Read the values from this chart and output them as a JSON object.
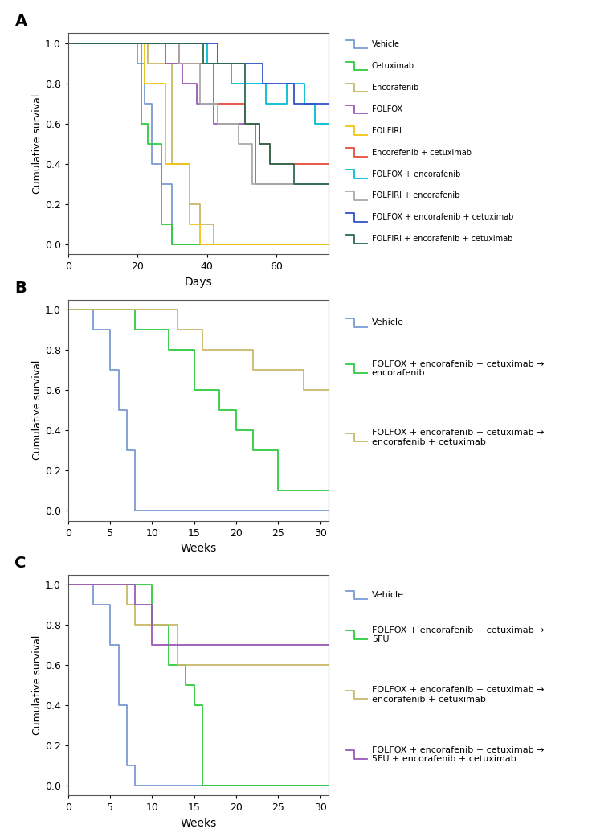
{
  "panel_A": {
    "xlabel": "Days",
    "ylabel": "Cumulative survival",
    "xlim": [
      0,
      75
    ],
    "ylim": [
      -0.05,
      1.05
    ],
    "xticks": [
      0,
      20,
      40,
      60
    ],
    "yticks": [
      0.0,
      0.2,
      0.4,
      0.6,
      0.8,
      1.0
    ],
    "curves": [
      {
        "label": "Vehicle",
        "color": "#7B9BD4",
        "x": [
          0,
          20,
          22,
          24,
          27,
          30,
          75
        ],
        "y": [
          1.0,
          0.9,
          0.7,
          0.4,
          0.3,
          0.0,
          0.0
        ]
      },
      {
        "label": "Cetuximab",
        "color": "#2ECC40",
        "x": [
          0,
          21,
          23,
          27,
          30,
          75
        ],
        "y": [
          1.0,
          0.6,
          0.5,
          0.1,
          0.0,
          0.0
        ]
      },
      {
        "label": "Encorafenib",
        "color": "#C8B96A",
        "x": [
          0,
          23,
          30,
          35,
          38,
          42,
          75
        ],
        "y": [
          1.0,
          0.9,
          0.4,
          0.2,
          0.1,
          0.0,
          0.0
        ]
      },
      {
        "label": "FOLFOX",
        "color": "#9B59B6",
        "x": [
          0,
          28,
          33,
          37,
          42,
          54,
          75
        ],
        "y": [
          1.0,
          0.9,
          0.8,
          0.7,
          0.6,
          0.3,
          0.3
        ]
      },
      {
        "label": "FOLFIRI",
        "color": "#F1C40F",
        "x": [
          0,
          22,
          28,
          35,
          38,
          75
        ],
        "y": [
          1.0,
          0.8,
          0.4,
          0.1,
          0.0,
          0.0
        ]
      },
      {
        "label": "Encorefenib + cetuximab",
        "color": "#E74C3C",
        "x": [
          0,
          32,
          42,
          51,
          55,
          58,
          75
        ],
        "y": [
          1.0,
          0.9,
          0.7,
          0.6,
          0.5,
          0.4,
          0.4
        ]
      },
      {
        "label": "FOLFOX + encorafenib",
        "color": "#00BCD4",
        "x": [
          0,
          40,
          47,
          57,
          63,
          68,
          71,
          75
        ],
        "y": [
          1.0,
          0.9,
          0.8,
          0.7,
          0.8,
          0.7,
          0.6,
          0.6
        ]
      },
      {
        "label": "FOLFIRI + encorafenib",
        "color": "#AAAAAA",
        "x": [
          0,
          32,
          38,
          43,
          49,
          53,
          57,
          75
        ],
        "y": [
          1.0,
          0.9,
          0.7,
          0.6,
          0.5,
          0.3,
          0.3,
          0.3
        ]
      },
      {
        "label": "FOLFOX + encorafenib + cetuximab",
        "color": "#3050C8",
        "x": [
          0,
          43,
          56,
          65,
          70,
          75
        ],
        "y": [
          1.0,
          0.9,
          0.8,
          0.7,
          0.7,
          0.7
        ]
      },
      {
        "label": "FOLFIRI + encorafenib + cetuximab",
        "color": "#2D6A4F",
        "x": [
          0,
          39,
          51,
          55,
          58,
          65,
          75
        ],
        "y": [
          1.0,
          0.9,
          0.6,
          0.5,
          0.4,
          0.3,
          0.3
        ]
      }
    ]
  },
  "panel_B": {
    "xlabel": "Weeks",
    "ylabel": "Cumulative survival",
    "xlim": [
      0,
      31
    ],
    "ylim": [
      -0.05,
      1.05
    ],
    "xticks": [
      0,
      5,
      10,
      15,
      20,
      25,
      30
    ],
    "yticks": [
      0.0,
      0.2,
      0.4,
      0.6,
      0.8,
      1.0
    ],
    "curves": [
      {
        "label": "Vehicle",
        "color": "#7B9BD4",
        "x": [
          0,
          3,
          5,
          6,
          7,
          8,
          31
        ],
        "y": [
          1.0,
          0.9,
          0.7,
          0.5,
          0.3,
          0.0,
          0.0
        ]
      },
      {
        "label": "FOLFOX + encorafenib + cetuximab →\nencorafenib",
        "color": "#2ECC40",
        "x": [
          0,
          8,
          12,
          15,
          18,
          20,
          22,
          25,
          31
        ],
        "y": [
          1.0,
          0.9,
          0.8,
          0.6,
          0.5,
          0.4,
          0.3,
          0.1,
          0.1
        ]
      },
      {
        "label": "FOLFOX + encorafenib + cetuximab →\nencorafenib + cetuximab",
        "color": "#C8B96A",
        "x": [
          0,
          9,
          13,
          16,
          22,
          25,
          28,
          31
        ],
        "y": [
          1.0,
          1.0,
          0.9,
          0.8,
          0.7,
          0.7,
          0.6,
          0.6
        ]
      }
    ]
  },
  "panel_C": {
    "xlabel": "Weeks",
    "ylabel": "Cumulative survival",
    "xlim": [
      0,
      31
    ],
    "ylim": [
      -0.05,
      1.05
    ],
    "xticks": [
      0,
      5,
      10,
      15,
      20,
      25,
      30
    ],
    "yticks": [
      0.0,
      0.2,
      0.4,
      0.6,
      0.8,
      1.0
    ],
    "curves": [
      {
        "label": "Vehicle",
        "color": "#7B9BD4",
        "x": [
          0,
          3,
          5,
          6,
          7,
          8,
          31
        ],
        "y": [
          1.0,
          0.9,
          0.7,
          0.4,
          0.1,
          0.0,
          0.0
        ]
      },
      {
        "label": "FOLFOX + encorafenib + cetuximab →\n5FU",
        "color": "#2ECC40",
        "x": [
          0,
          8,
          10,
          12,
          14,
          15,
          16,
          31
        ],
        "y": [
          1.0,
          1.0,
          0.8,
          0.6,
          0.5,
          0.4,
          0.0,
          0.0
        ]
      },
      {
        "label": "FOLFOX + encorafenib + cetuximab →\nencorafenib + cetuximab",
        "color": "#C8B96A",
        "x": [
          0,
          7,
          8,
          10,
          13,
          31
        ],
        "y": [
          1.0,
          0.9,
          0.8,
          0.8,
          0.6,
          0.6
        ]
      },
      {
        "label": "FOLFOX + encorafenib + cetuximab →\n5FU + encorafenib + cetuximab",
        "color": "#9B59B6",
        "x": [
          0,
          8,
          10,
          31
        ],
        "y": [
          1.0,
          0.9,
          0.7,
          0.7
        ]
      }
    ]
  }
}
